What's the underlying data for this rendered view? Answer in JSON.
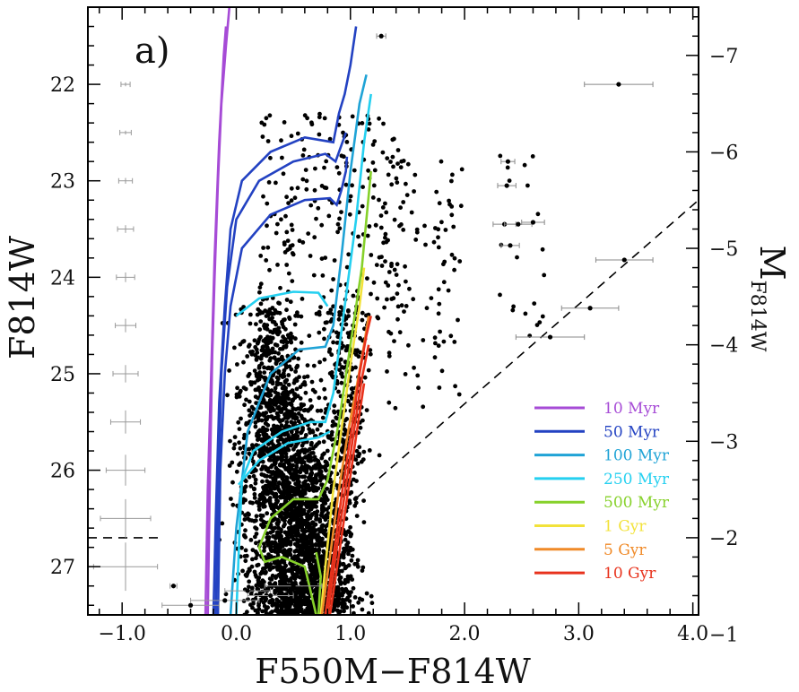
{
  "chart_data": {
    "type": "scatter",
    "panel_label": "a)",
    "xlabel": "F550M−F814W",
    "ylabel": "F814W",
    "ylabel_right": "M",
    "ylabel_right_sub": "F814W",
    "xlim": [
      -1.3,
      4.05
    ],
    "ylim": [
      27.5,
      21.2
    ],
    "right_axis_offset": 28.7,
    "x_ticks": [
      -1.0,
      0.0,
      1.0,
      2.0,
      3.0,
      4.0
    ],
    "x_tick_labels": [
      "−1.0",
      "0.0",
      "1.0",
      "2.0",
      "3.0",
      "4.0"
    ],
    "y_ticks": [
      22,
      23,
      24,
      25,
      26,
      27
    ],
    "y_tick_labels": [
      "22",
      "23",
      "24",
      "25",
      "26",
      "27"
    ],
    "y_right_ticks": [
      -7,
      -6,
      -5,
      -4,
      -3,
      -2,
      -1
    ],
    "y_right_tick_labels": [
      "−7",
      "−6",
      "−5",
      "−4",
      "−3",
      "−2",
      "−1"
    ],
    "grid": false,
    "legend_position": "bottom-right",
    "completeness_line": {
      "from": [
        0.75,
        26.6
      ],
      "to": [
        4.05,
        23.2
      ]
    },
    "completeness_horizontal": {
      "y": 26.7,
      "x_from": -1.3,
      "x_to": -0.65
    },
    "error_bars_left": [
      {
        "x": -0.97,
        "y": 22.0,
        "ex": 0.04,
        "ey": 0.02
      },
      {
        "x": -0.97,
        "y": 22.5,
        "ex": 0.05,
        "ey": 0.02
      },
      {
        "x": -0.97,
        "y": 23.0,
        "ex": 0.06,
        "ey": 0.03
      },
      {
        "x": -0.97,
        "y": 23.5,
        "ex": 0.07,
        "ey": 0.04
      },
      {
        "x": -0.97,
        "y": 24.0,
        "ex": 0.08,
        "ey": 0.05
      },
      {
        "x": -0.97,
        "y": 24.5,
        "ex": 0.09,
        "ey": 0.07
      },
      {
        "x": -0.97,
        "y": 25.0,
        "ex": 0.11,
        "ey": 0.09
      },
      {
        "x": -0.97,
        "y": 25.5,
        "ex": 0.13,
        "ey": 0.12
      },
      {
        "x": -0.97,
        "y": 26.0,
        "ex": 0.17,
        "ey": 0.16
      },
      {
        "x": -0.97,
        "y": 26.5,
        "ex": 0.22,
        "ey": 0.2
      },
      {
        "x": -0.97,
        "y": 27.0,
        "ex": 0.28,
        "ey": 0.25
      }
    ],
    "red_stars": [
      {
        "x": 1.27,
        "y": 21.5,
        "ex": 0.04
      },
      {
        "x": 3.35,
        "y": 22.0,
        "ex": 0.3
      },
      {
        "x": 2.38,
        "y": 22.8,
        "ex": 0.06
      },
      {
        "x": 2.37,
        "y": 23.05,
        "ex": 0.08
      },
      {
        "x": 2.35,
        "y": 23.45,
        "ex": 0.1
      },
      {
        "x": 2.47,
        "y": 23.45,
        "ex": 0.12
      },
      {
        "x": 2.6,
        "y": 23.43,
        "ex": 0.1
      },
      {
        "x": 2.4,
        "y": 23.67,
        "ex": 0.08
      },
      {
        "x": 3.4,
        "y": 23.82,
        "ex": 0.25
      },
      {
        "x": 3.1,
        "y": 24.32,
        "ex": 0.25
      },
      {
        "x": 2.75,
        "y": 24.62,
        "ex": 0.3
      }
    ],
    "bottom_error_stars": [
      {
        "x": -0.55,
        "y": 27.2,
        "ex": 0.03
      },
      {
        "x": -0.4,
        "y": 27.4,
        "ex": 0.25
      },
      {
        "x": -0.1,
        "y": 27.35,
        "ex": 0.3
      },
      {
        "x": 0.1,
        "y": 27.25,
        "ex": 0.2
      },
      {
        "x": 0.3,
        "y": 27.3,
        "ex": 0.2
      },
      {
        "x": 0.5,
        "y": 27.2,
        "ex": 0.25
      }
    ],
    "series": [
      {
        "name": "10 Myr",
        "color": "#a64bd6",
        "lines": [
          [
            [
              -0.25,
              27.5
            ],
            [
              -0.23,
              26.0
            ],
            [
              -0.21,
              24.8
            ],
            [
              -0.19,
              24.0
            ],
            [
              -0.16,
              23.0
            ],
            [
              -0.13,
              22.2
            ],
            [
              -0.09,
              21.6
            ],
            [
              -0.06,
              21.2
            ]
          ],
          [
            [
              -0.27,
              27.5
            ],
            [
              -0.25,
              26.2
            ],
            [
              -0.22,
              25.0
            ],
            [
              -0.19,
              23.8
            ],
            [
              -0.15,
              22.6
            ],
            [
              -0.11,
              21.7
            ],
            [
              -0.09,
              21.4
            ]
          ]
        ]
      },
      {
        "name": "50 Myr",
        "color": "#2342c2",
        "lines": [
          [
            [
              -0.2,
              27.5
            ],
            [
              -0.18,
              26.5
            ],
            [
              -0.15,
              25.3
            ],
            [
              -0.1,
              24.3
            ],
            [
              -0.05,
              23.5
            ],
            [
              0.05,
              23.0
            ],
            [
              0.3,
              22.7
            ],
            [
              0.6,
              22.55
            ],
            [
              0.85,
              22.6
            ],
            [
              0.9,
              22.3
            ],
            [
              0.95,
              22.1
            ],
            [
              1.0,
              21.8
            ],
            [
              1.05,
              21.4
            ]
          ],
          [
            [
              -0.18,
              27.5
            ],
            [
              -0.16,
              26.3
            ],
            [
              -0.13,
              25.0
            ],
            [
              -0.08,
              24.1
            ],
            [
              0.0,
              23.4
            ],
            [
              0.2,
              23.0
            ],
            [
              0.5,
              22.8
            ],
            [
              0.78,
              22.72
            ],
            [
              0.87,
              22.8
            ],
            [
              0.93,
              22.6
            ],
            [
              0.96,
              22.5
            ]
          ],
          [
            [
              -0.16,
              27.5
            ],
            [
              -0.14,
              26.0
            ],
            [
              -0.1,
              25.0
            ],
            [
              -0.05,
              24.3
            ],
            [
              0.05,
              23.7
            ],
            [
              0.3,
              23.35
            ],
            [
              0.6,
              23.2
            ],
            [
              0.82,
              23.18
            ],
            [
              0.88,
              23.25
            ],
            [
              0.92,
              23.1
            ],
            [
              0.96,
              22.9
            ],
            [
              0.97,
              22.75
            ]
          ]
        ]
      },
      {
        "name": "100 Myr",
        "color": "#1fa3d6",
        "lines": [
          [
            [
              -0.05,
              27.5
            ],
            [
              0.0,
              26.6
            ],
            [
              0.1,
              25.6
            ],
            [
              0.3,
              25.0
            ],
            [
              0.55,
              24.75
            ],
            [
              0.78,
              24.72
            ],
            [
              0.85,
              24.5
            ],
            [
              0.92,
              23.8
            ],
            [
              1.0,
              22.9
            ],
            [
              1.08,
              22.2
            ],
            [
              1.14,
              21.9
            ]
          ]
        ]
      },
      {
        "name": "250 Myr",
        "color": "#25d0f0",
        "lines": [
          [
            [
              0.0,
              27.5
            ],
            [
              0.03,
              26.6
            ],
            [
              0.05,
              26.1
            ],
            [
              0.15,
              25.8
            ],
            [
              0.4,
              25.6
            ],
            [
              0.65,
              25.5
            ],
            [
              0.78,
              25.5
            ],
            [
              0.85,
              25.2
            ],
            [
              0.95,
              24.3
            ],
            [
              1.05,
              23.4
            ],
            [
              1.12,
              22.6
            ],
            [
              1.18,
              22.1
            ]
          ],
          [
            [
              0.02,
              26.15
            ],
            [
              0.2,
              25.9
            ],
            [
              0.45,
              25.72
            ],
            [
              0.72,
              25.66
            ],
            [
              0.82,
              25.6
            ]
          ],
          [
            [
              0.0,
              24.4
            ],
            [
              0.2,
              24.22
            ],
            [
              0.5,
              24.15
            ],
            [
              0.72,
              24.16
            ],
            [
              0.8,
              24.3
            ]
          ]
        ]
      },
      {
        "name": "500 Myr",
        "color": "#86d12a",
        "lines": [
          [
            [
              0.7,
              27.5
            ],
            [
              0.6,
              27.0
            ],
            [
              0.4,
              26.9
            ],
            [
              0.25,
              26.95
            ],
            [
              0.2,
              26.8
            ],
            [
              0.3,
              26.5
            ],
            [
              0.5,
              26.3
            ],
            [
              0.72,
              26.3
            ],
            [
              0.8,
              26.1
            ],
            [
              0.9,
              25.5
            ],
            [
              1.0,
              24.7
            ],
            [
              1.1,
              23.9
            ],
            [
              1.18,
              22.9
            ]
          ],
          [
            [
              0.72,
              27.5
            ],
            [
              0.74,
              27.1
            ],
            [
              0.7,
              26.85
            ]
          ]
        ]
      },
      {
        "name": "1 Gyr",
        "color": "#f2e23a",
        "lines": [
          [
            [
              0.74,
              27.5
            ],
            [
              0.78,
              27.0
            ],
            [
              0.85,
              26.2
            ],
            [
              0.93,
              25.5
            ],
            [
              1.0,
              24.9
            ],
            [
              1.08,
              24.3
            ],
            [
              1.12,
              23.9
            ]
          ]
        ]
      },
      {
        "name": "5 Gyr",
        "color": "#f08a28",
        "lines": [
          [
            [
              0.75,
              27.5
            ],
            [
              0.82,
              26.9
            ],
            [
              0.9,
              26.2
            ],
            [
              0.98,
              25.6
            ],
            [
              1.06,
              25.1
            ],
            [
              1.12,
              24.7
            ],
            [
              1.16,
              24.4
            ]
          ]
        ]
      },
      {
        "name": "10 Gyr",
        "color": "#e8321c",
        "lines": [
          [
            [
              0.78,
              27.5
            ],
            [
              0.85,
              26.9
            ],
            [
              0.93,
              26.2
            ],
            [
              1.02,
              25.5
            ],
            [
              1.08,
              25.0
            ],
            [
              1.14,
              24.6
            ],
            [
              1.18,
              24.4
            ]
          ],
          [
            [
              0.8,
              27.5
            ],
            [
              0.87,
              26.9
            ],
            [
              0.95,
              26.25
            ],
            [
              1.03,
              25.6
            ],
            [
              1.1,
              25.05
            ],
            [
              1.16,
              24.7
            ]
          ],
          [
            [
              0.82,
              27.5
            ],
            [
              0.89,
              26.95
            ],
            [
              0.97,
              26.3
            ],
            [
              1.05,
              25.65
            ],
            [
              1.12,
              25.1
            ]
          ]
        ]
      }
    ]
  }
}
